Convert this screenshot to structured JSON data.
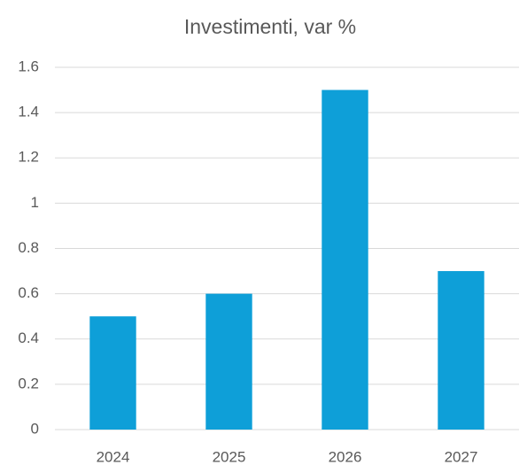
{
  "chart_data": {
    "type": "bar",
    "title": "Investimenti, var %",
    "categories": [
      "2024",
      "2025",
      "2026",
      "2027"
    ],
    "values": [
      0.5,
      0.6,
      1.5,
      0.7
    ],
    "color": "#0e9fd8",
    "ylim": [
      0,
      1.6
    ],
    "yticks": [
      0,
      0.2,
      0.4,
      0.6,
      0.8,
      1,
      1.2,
      1.4,
      1.6
    ],
    "grid": true
  }
}
